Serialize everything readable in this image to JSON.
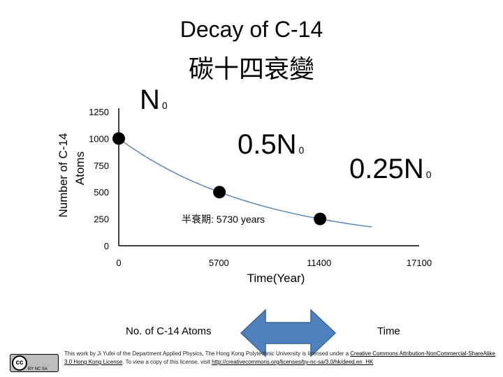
{
  "chart_data": {
    "type": "scatter",
    "title": "Decay of C-14",
    "subtitle": "碳十四衰變",
    "xlabel": "Time(Year)",
    "ylabel_line1": "Number of C-14",
    "ylabel_line2": "Atoms",
    "xlim": [
      0,
      17100
    ],
    "ylim": [
      0,
      1250
    ],
    "x_ticks": [
      0,
      5700,
      11400,
      17100
    ],
    "y_ticks": [
      0,
      250,
      500,
      750,
      1000,
      1250
    ],
    "grid": false,
    "points": [
      {
        "x": 0,
        "y": 1000
      },
      {
        "x": 5730,
        "y": 500
      },
      {
        "x": 11460,
        "y": 250
      }
    ],
    "curve": {
      "type": "decay",
      "N0": 1000,
      "half_life": 5730,
      "x_end": 14400
    },
    "annotations": {
      "n0": {
        "main": "N",
        "sub": "0"
      },
      "half": {
        "main": "0.5N",
        "sub": "0"
      },
      "quarter": {
        "main": "0.25N",
        "sub": "0"
      },
      "half_life_label": "半衰期: 5730   years"
    }
  },
  "legend": {
    "left": "No. of C-14 Atoms",
    "right": "Time",
    "arrow_color": "#4f81bd"
  },
  "license": {
    "text_before": "This work by Ji Yufei of the Department Applied Physics, The Hong Kong Polytechnic University is licensed under a ",
    "link1": "Creative Commons Attribution-NonCommercial-ShareAlike 3.0 Hong Kong License",
    "text_middle": ". To view a copy of this license, visit ",
    "link2": "http://creativecommons.org/licenses/by-nc-sa/3.0/hk/deed.en_HK",
    "badge_cc": "cc",
    "badge_tags": "BY  NC  SA"
  }
}
